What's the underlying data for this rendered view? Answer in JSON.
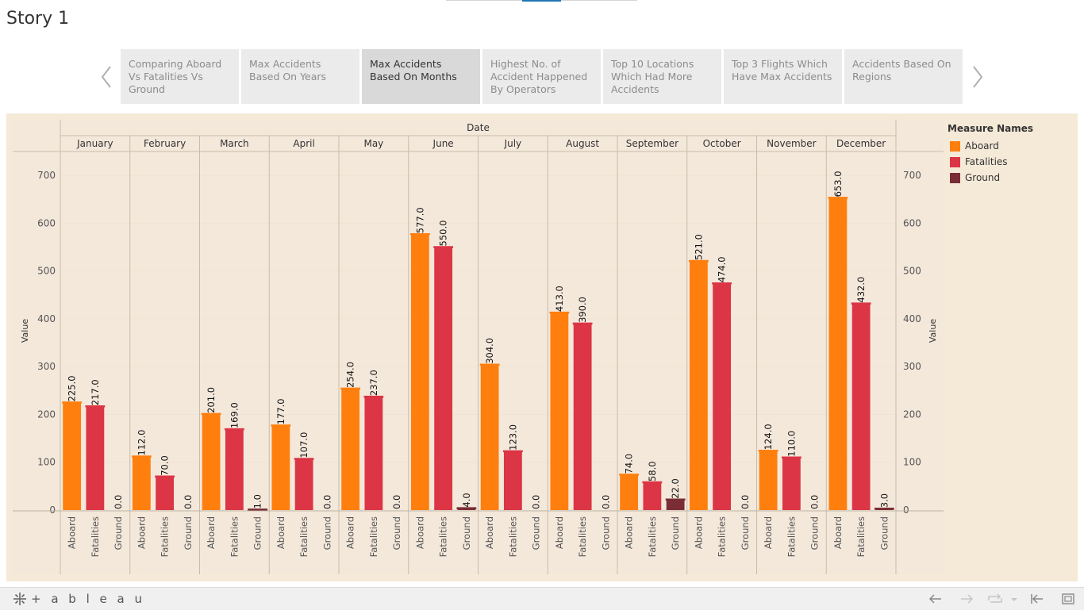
{
  "story": {
    "title": "Story 1"
  },
  "story_points": [
    {
      "label": "Comparing Aboard Vs Fatalities Vs Ground",
      "active": false
    },
    {
      "label": "Max Accidents Based On Years",
      "active": false
    },
    {
      "label": "Max Accidents Based On Months",
      "active": true
    },
    {
      "label": "Highest No. of Accident Happened  By Operators",
      "active": false
    },
    {
      "label": "Top 10 Locations Which Had More Accidents",
      "active": false
    },
    {
      "label": "Top 3 Flights Which Have Max Accidents",
      "active": false
    },
    {
      "label": "Accidents Based On Regions",
      "active": false
    }
  ],
  "icons": {
    "prev": "chevron-left-icon",
    "next": "chevron-right-icon",
    "logo": "tableau-logo-icon",
    "undo": "undo-arrow-icon",
    "redo": "redo-arrow-icon",
    "revert": "revert-icon",
    "revert_menu": "dropdown-caret-icon",
    "first": "first-page-icon",
    "fullscreen": "fullscreen-icon"
  },
  "footer": {
    "logo_text": "+ a b l e a u"
  },
  "legend": {
    "title": "Measure Names",
    "items": [
      {
        "label": "Aboard",
        "color": "#ff7f0e"
      },
      {
        "label": "Fatalities",
        "color": "#dc3545"
      },
      {
        "label": "Ground",
        "color": "#7b2d35"
      }
    ]
  },
  "chart_data": {
    "type": "bar",
    "column_header": "Date",
    "ylabel": "Value",
    "ylim": [
      0,
      730
    ],
    "yticks": [
      0,
      100,
      200,
      300,
      400,
      500,
      600,
      700
    ],
    "measures": [
      "Aboard",
      "Fatalities",
      "Ground"
    ],
    "colors": {
      "Aboard": "#ff7f0e",
      "Fatalities": "#dc3545",
      "Ground": "#7b2d35"
    },
    "label_decimals": 1,
    "grid": true,
    "legend_position": "right",
    "categories": [
      "January",
      "February",
      "March",
      "April",
      "May",
      "June",
      "July",
      "August",
      "September",
      "October",
      "November",
      "December"
    ],
    "series": [
      {
        "name": "Aboard",
        "values": [
          225,
          112,
          201,
          177,
          254,
          577,
          304,
          413,
          74,
          521,
          124,
          653
        ]
      },
      {
        "name": "Fatalities",
        "values": [
          217,
          70,
          169,
          107,
          237,
          550,
          123,
          390,
          58,
          474,
          110,
          432
        ]
      },
      {
        "name": "Ground",
        "values": [
          0,
          0,
          1,
          0,
          0,
          4,
          0,
          0,
          22,
          0,
          0,
          3
        ]
      }
    ]
  }
}
